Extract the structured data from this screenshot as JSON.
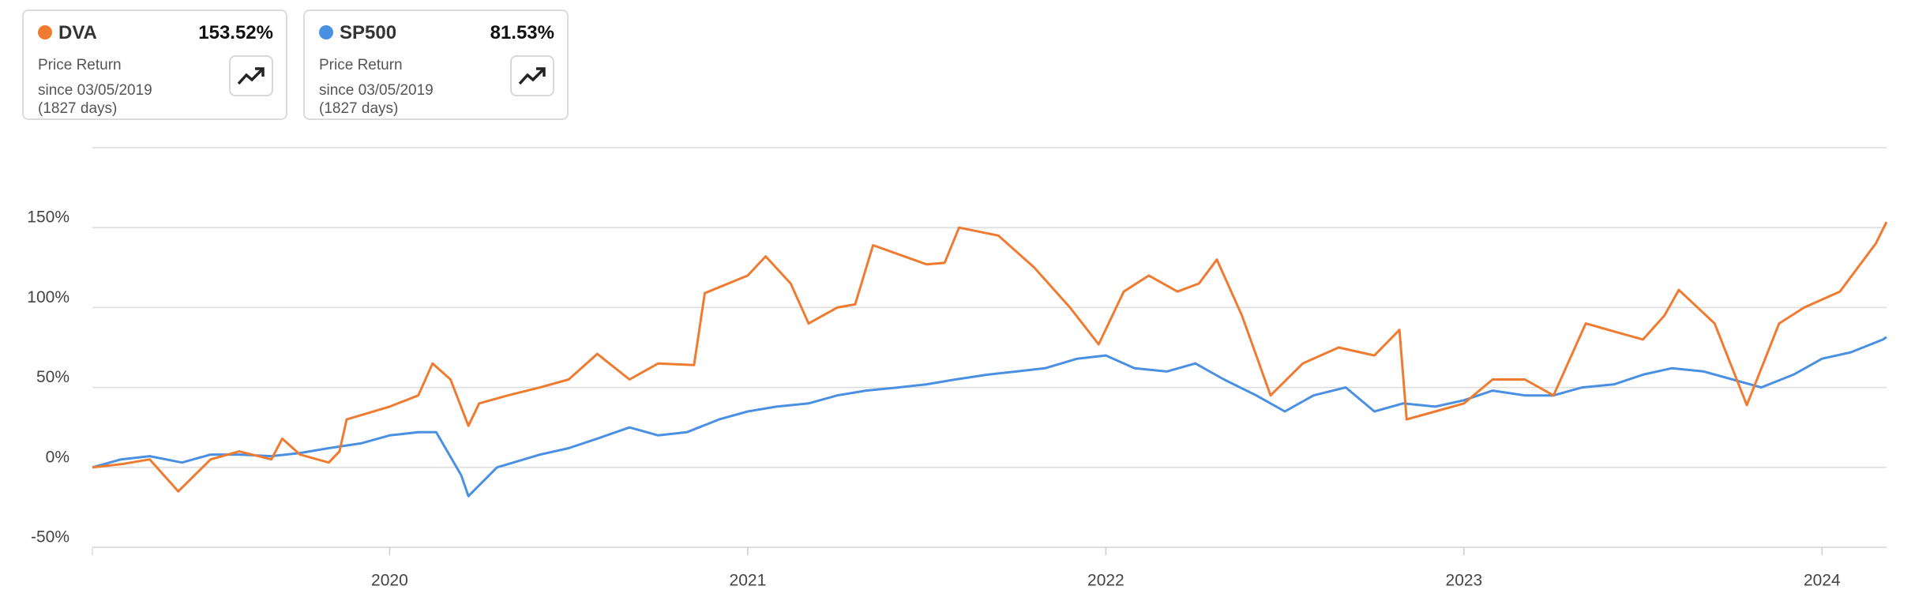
{
  "cards": [
    {
      "ticker": "DVA",
      "color": "#ee7b30",
      "return": "153.52%",
      "label": "Price Return",
      "since": "since 03/05/2019",
      "days": "(1827 days)"
    },
    {
      "ticker": "SP500",
      "color": "#4a90e2",
      "return": "81.53%",
      "label": "Price Return",
      "since": "since 03/05/2019",
      "days": "(1827 days)"
    }
  ],
  "chart_data": {
    "type": "line",
    "xlim": [
      2019.17,
      2024.18
    ],
    "xticks": [
      2020,
      2021,
      2022,
      2023,
      2024
    ],
    "ylim": [
      -50,
      200
    ],
    "yticks": [
      {
        "value": -50,
        "label": "-50%"
      },
      {
        "value": 0,
        "label": "0%"
      },
      {
        "value": 50,
        "label": "50%"
      },
      {
        "value": 100,
        "label": "100%"
      },
      {
        "value": 150,
        "label": "150%"
      }
    ],
    "grid": true,
    "series": [
      {
        "name": "DVA",
        "color": "#ee7b30",
        "x": [
          2019.17,
          2019.25,
          2019.33,
          2019.41,
          2019.5,
          2019.58,
          2019.67,
          2019.7,
          2019.75,
          2019.83,
          2019.86,
          2019.88,
          2020.0,
          2020.08,
          2020.12,
          2020.17,
          2020.22,
          2020.25,
          2020.33,
          2020.42,
          2020.5,
          2020.58,
          2020.67,
          2020.75,
          2020.85,
          2020.88,
          2021.0,
          2021.05,
          2021.12,
          2021.17,
          2021.25,
          2021.3,
          2021.35,
          2021.5,
          2021.55,
          2021.59,
          2021.7,
          2021.8,
          2021.9,
          2021.98,
          2022.05,
          2022.12,
          2022.2,
          2022.26,
          2022.31,
          2022.38,
          2022.46,
          2022.55,
          2022.65,
          2022.75,
          2022.82,
          2022.84,
          2022.92,
          2023.0,
          2023.08,
          2023.17,
          2023.25,
          2023.34,
          2023.42,
          2023.5,
          2023.56,
          2023.6,
          2023.7,
          2023.79,
          2023.88,
          2023.95,
          2024.05,
          2024.15,
          2024.18
        ],
        "values": [
          0,
          2,
          5,
          -15,
          5,
          10,
          5,
          18,
          8,
          3,
          10,
          30,
          38,
          45,
          65,
          55,
          26,
          40,
          45,
          50,
          55,
          71,
          55,
          65,
          64,
          109,
          120,
          132,
          115,
          90,
          100,
          102,
          139,
          127,
          128,
          150,
          145,
          125,
          100,
          77,
          110,
          120,
          110,
          115,
          130,
          95,
          45,
          65,
          75,
          70,
          86,
          30,
          35,
          40,
          55,
          55,
          45,
          90,
          85,
          80,
          95,
          111,
          90,
          39,
          90,
          100,
          110,
          140,
          153.52
        ]
      },
      {
        "name": "SP500",
        "color": "#4a90e2",
        "x": [
          2019.17,
          2019.25,
          2019.33,
          2019.42,
          2019.5,
          2019.58,
          2019.67,
          2019.75,
          2019.83,
          2019.92,
          2020.0,
          2020.08,
          2020.13,
          2020.2,
          2020.22,
          2020.3,
          2020.42,
          2020.5,
          2020.58,
          2020.67,
          2020.75,
          2020.83,
          2020.92,
          2021.0,
          2021.08,
          2021.17,
          2021.25,
          2021.33,
          2021.42,
          2021.5,
          2021.58,
          2021.67,
          2021.75,
          2021.83,
          2021.92,
          2022.0,
          2022.08,
          2022.17,
          2022.25,
          2022.33,
          2022.42,
          2022.5,
          2022.58,
          2022.67,
          2022.75,
          2022.83,
          2022.92,
          2023.0,
          2023.08,
          2023.17,
          2023.25,
          2023.33,
          2023.42,
          2023.5,
          2023.58,
          2023.67,
          2023.75,
          2023.83,
          2023.92,
          2024.0,
          2024.08,
          2024.17,
          2024.18
        ],
        "values": [
          0,
          5,
          7,
          3,
          8,
          8,
          7,
          9,
          12,
          15,
          20,
          22,
          22,
          -5,
          -18,
          0,
          8,
          12,
          18,
          25,
          20,
          22,
          30,
          35,
          38,
          40,
          45,
          48,
          50,
          52,
          55,
          58,
          60,
          62,
          68,
          70,
          62,
          60,
          65,
          55,
          45,
          35,
          45,
          50,
          35,
          40,
          38,
          42,
          48,
          45,
          45,
          50,
          52,
          58,
          62,
          60,
          55,
          50,
          58,
          68,
          72,
          80,
          81.53
        ]
      }
    ]
  }
}
